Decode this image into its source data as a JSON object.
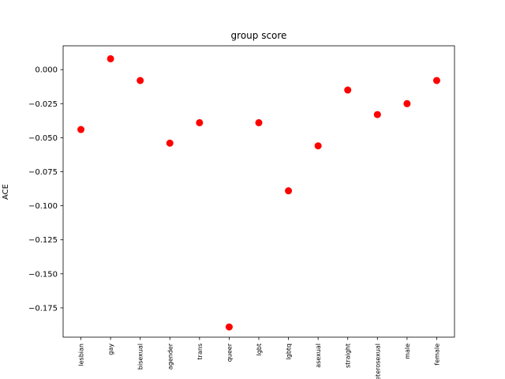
{
  "chart_data": {
    "type": "scatter",
    "title": "group score",
    "xlabel": "",
    "ylabel": "ACE",
    "categories": [
      "lesbian",
      "gay",
      "bisexual",
      "agender",
      "trans",
      "queer",
      "lgbt",
      "lgbtq",
      "asexual",
      "straight",
      "heterosexual",
      "male",
      "female"
    ],
    "values": [
      -0.044,
      0.008,
      -0.008,
      -0.054,
      -0.039,
      -0.189,
      -0.039,
      -0.089,
      -0.056,
      -0.015,
      -0.033,
      -0.025,
      -0.008
    ],
    "ylim": [
      -0.1965,
      0.0175
    ],
    "yticks": [
      0.0,
      -0.025,
      -0.05,
      -0.075,
      -0.1,
      -0.125,
      -0.15,
      -0.175
    ],
    "ytick_labels": [
      "0.000",
      "−0.025",
      "−0.050",
      "−0.075",
      "−0.100",
      "−0.125",
      "−0.150",
      "−0.175"
    ],
    "marker_color": "#ff0000",
    "grid": false
  }
}
